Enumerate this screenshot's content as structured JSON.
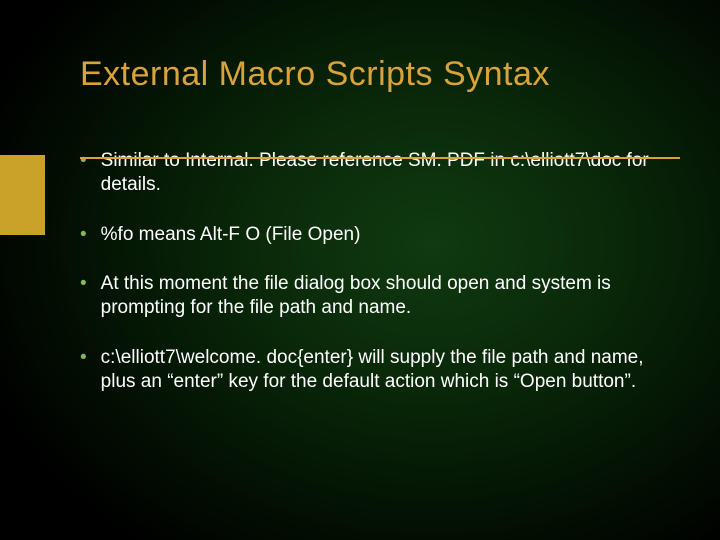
{
  "slide": {
    "title": "External Macro Scripts Syntax",
    "title_color": "#d9a23a",
    "title_fontsize": 34,
    "underline_color": "#d9a23a",
    "body_color": "#ffffff",
    "body_fontsize": 19,
    "bullet_color": "#7fb860",
    "accent_bar_color": "#c9a227",
    "background": {
      "type": "radial-gradient",
      "center_color": "#103a10",
      "edge_color": "#000000"
    },
    "bullets": [
      "Similar to Internal.  Please reference SM. PDF in c:\\elliott7\\doc for details.",
      "%fo means Alt-F O (File Open)",
      "At this moment the file dialog box should open and system is prompting for the file path and name.",
      "c:\\elliott7\\welcome. doc{enter} will supply the file path and name, plus an “enter” key for the default action which is “Open button”."
    ]
  }
}
